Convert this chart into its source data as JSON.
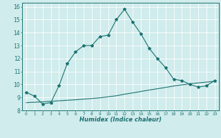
{
  "xlabel": "Humidex (Indice chaleur)",
  "ylabel": "",
  "bg_color": "#d0ecec",
  "grid_color": "#ffffff",
  "line_color": "#1a7070",
  "xlim": [
    -0.5,
    23.5
  ],
  "ylim": [
    8,
    16.3
  ],
  "x_ticks": [
    0,
    1,
    2,
    3,
    4,
    5,
    6,
    7,
    8,
    9,
    10,
    11,
    12,
    13,
    14,
    15,
    16,
    17,
    18,
    19,
    20,
    21,
    22,
    23
  ],
  "y_ticks": [
    8,
    9,
    10,
    11,
    12,
    13,
    14,
    15,
    16
  ],
  "line1_x": [
    0,
    1,
    2,
    3,
    4,
    5,
    6,
    7,
    8,
    9,
    10,
    11,
    12,
    13,
    14,
    15,
    16,
    17,
    18,
    19,
    20,
    21,
    22,
    23
  ],
  "line1_y": [
    9.4,
    9.1,
    8.5,
    8.6,
    9.9,
    11.6,
    12.5,
    13.0,
    13.0,
    13.7,
    13.8,
    15.0,
    15.8,
    14.8,
    13.9,
    12.8,
    12.0,
    11.3,
    10.4,
    10.3,
    10.0,
    9.8,
    9.9,
    10.3
  ],
  "line2_x": [
    0,
    1,
    2,
    3,
    4,
    5,
    6,
    7,
    8,
    9,
    10,
    11,
    12,
    13,
    14,
    15,
    16,
    17,
    18,
    19,
    20,
    21,
    22,
    23
  ],
  "line2_y": [
    8.6,
    8.63,
    8.66,
    8.7,
    8.74,
    8.78,
    8.82,
    8.87,
    8.92,
    8.97,
    9.05,
    9.13,
    9.25,
    9.35,
    9.46,
    9.57,
    9.67,
    9.77,
    9.88,
    9.97,
    10.05,
    10.12,
    10.18,
    10.25
  ]
}
